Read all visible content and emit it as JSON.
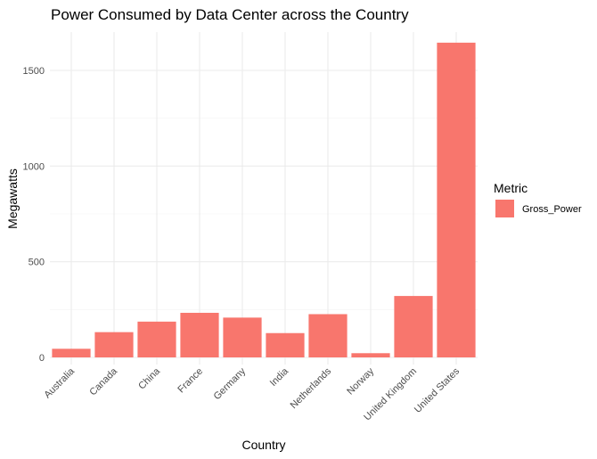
{
  "chart_data": {
    "type": "bar",
    "title": "Power Consumed by Data Center across the Country",
    "xlabel": "Country",
    "ylabel": "Megawatts",
    "categories": [
      "Australia",
      "Canada",
      "China",
      "France",
      "Germany",
      "India",
      "Netherlands",
      "Norway",
      "United Kingdom",
      "United States"
    ],
    "series": [
      {
        "name": "Gross_Power",
        "values": [
          45,
          132,
          187,
          233,
          208,
          127,
          226,
          22,
          321,
          1645
        ],
        "color": "#f8766d"
      }
    ],
    "ylim": [
      0,
      1710
    ],
    "yticks": [
      0,
      500,
      1000,
      1500
    ],
    "grid": true,
    "legend": {
      "title": "Metric",
      "position": "right"
    }
  }
}
